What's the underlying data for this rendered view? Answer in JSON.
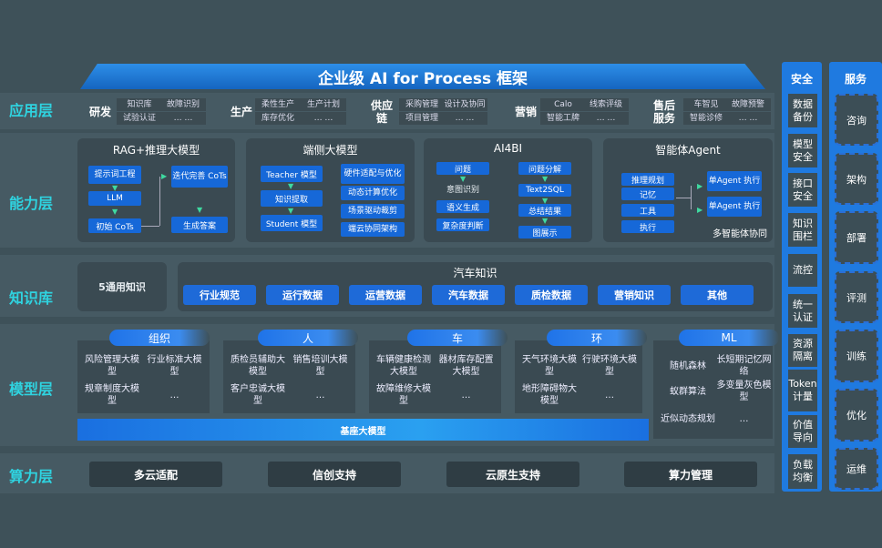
{
  "title": "企业级 AI for Process 框架",
  "layers": {
    "app": "应用层",
    "capability": "能力层",
    "knowledge": "知识库",
    "model": "模型层",
    "compute": "算力层"
  },
  "app_groups": [
    {
      "name": "研发",
      "items": [
        "知识库",
        "故障识别",
        "试验认证",
        "… …"
      ]
    },
    {
      "name": "生产",
      "items": [
        "柔性生产",
        "生产计划",
        "库存优化",
        "… …"
      ]
    },
    {
      "name": "供应链",
      "items": [
        "采购管理",
        "设计及协同",
        "项目管理",
        "… …"
      ]
    },
    {
      "name": "营销",
      "items": [
        "Calo",
        "线索评级",
        "智能工牌",
        "… …"
      ]
    },
    {
      "name": "售后服务",
      "items": [
        "车智见",
        "故障预警",
        "智能诊修",
        "… …"
      ]
    }
  ],
  "capabilities": {
    "rag": {
      "title": "RAG+推理大模型",
      "steps": [
        "提示词工程",
        "LLM",
        "初始 CoTs",
        "迭代完善 CoTs",
        "生成答案"
      ]
    },
    "edge": {
      "title": "端侧大模型",
      "left": [
        "Teacher 模型",
        "知识提取",
        "Student 模型"
      ],
      "right": [
        "硬件适配与优化",
        "动态计算优化",
        "场景驱动裁剪",
        "端云协同架构"
      ]
    },
    "ai4bi": {
      "title": "AI4BI",
      "left": [
        "问题",
        "意图识别",
        "语义生成",
        "复杂度判断"
      ],
      "right": [
        "问题分解",
        "Text2SQL",
        "总结结果",
        "图展示"
      ]
    },
    "agent": {
      "title": "智能体Agent",
      "left": [
        "推理规划",
        "记忆",
        "工具",
        "执行"
      ],
      "right": [
        "单Agent 执行",
        "单Agent 执行"
      ],
      "caption": "多智能体协同"
    }
  },
  "knowledge": {
    "general": "5通用知识",
    "auto_title": "汽车知识",
    "auto_items": [
      "行业规范",
      "运行数据",
      "运营数据",
      "汽车数据",
      "质检数据",
      "营销知识",
      "其他"
    ]
  },
  "models": [
    {
      "name": "组织",
      "items": [
        "风险管理大模型",
        "行业标准大模型",
        "规章制度大模型",
        "…"
      ]
    },
    {
      "name": "人",
      "items": [
        "质检员辅助大模型",
        "销售培训大模型",
        "客户忠诚大模型",
        "…"
      ]
    },
    {
      "name": "车",
      "items": [
        "车辆健康检测大模型",
        "器材库存配置大模型",
        "故障维修大模型",
        "…"
      ]
    },
    {
      "name": "环",
      "items": [
        "天气环境大模型",
        "行驶环境大模型",
        "地形障碍物大模型",
        "…"
      ]
    },
    {
      "name": "ML",
      "items": [
        "随机森林",
        "长短期记忆网络",
        "蚁群算法",
        "多变量灰色模型",
        "近似动态规划",
        "…"
      ]
    }
  ],
  "base_model": "基座大模型",
  "compute": [
    "多云适配",
    "信创支持",
    "云原生支持",
    "算力管理"
  ],
  "security": {
    "title": "安全",
    "items": [
      "数据备份",
      "模型安全",
      "接口安全",
      "知识围栏",
      "流控",
      "统一认证",
      "资源隔离",
      "Token计量",
      "价值导向",
      "负载均衡"
    ]
  },
  "service": {
    "title": "服务",
    "items": [
      "咨询",
      "架构",
      "部署",
      "评测",
      "训练",
      "优化",
      "运维"
    ]
  },
  "colors": {
    "background": "#3e5159",
    "accent": "#1f7ae0",
    "layer_label": "#2fd3e0"
  }
}
